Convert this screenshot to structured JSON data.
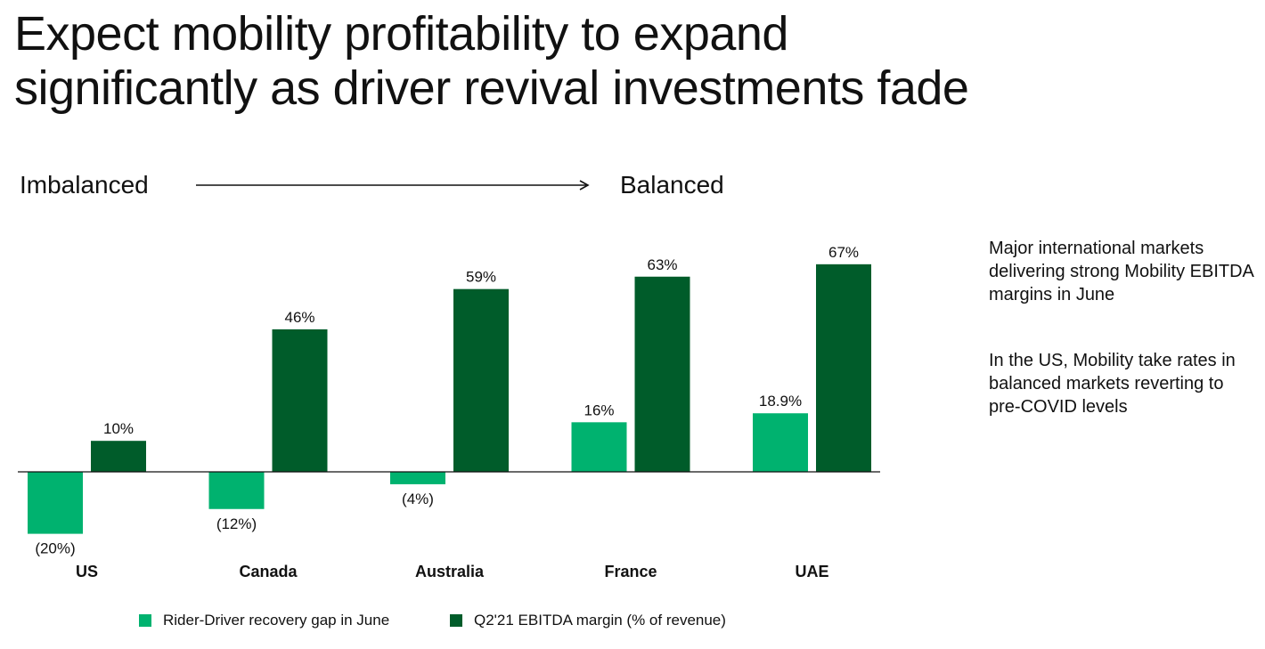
{
  "page": {
    "title_line1": "Expect mobility profitability to expand",
    "title_line2": "significantly as driver revival investments fade"
  },
  "spectrum": {
    "left_label": "Imbalanced",
    "right_label": "Balanced"
  },
  "notes": [
    "Major international markets delivering strong Mobility EBITDA margins in June",
    "In the US, Mobility take rates in balanced markets reverting to pre-COVID levels"
  ],
  "chart_data": {
    "type": "bar",
    "title": "",
    "xlabel": "",
    "ylabel": "",
    "categories": [
      "US",
      "Canada",
      "Australia",
      "France",
      "UAE"
    ],
    "series": [
      {
        "name": "Rider-Driver recovery gap in June",
        "color": "#00b26f",
        "values": [
          -20,
          -12,
          -4,
          16,
          18.9
        ],
        "labels": [
          "(20%)",
          "(12%)",
          "(4%)",
          "16%",
          "18.9%"
        ]
      },
      {
        "name": "Q2'21 EBITDA margin (% of revenue)",
        "color": "#005c2a",
        "values": [
          10,
          46,
          59,
          63,
          67
        ],
        "labels": [
          "10%",
          "46%",
          "59%",
          "63%",
          "67%"
        ]
      }
    ],
    "ylim": [
      -20,
      67
    ],
    "grid": false,
    "legend": "bottom"
  }
}
